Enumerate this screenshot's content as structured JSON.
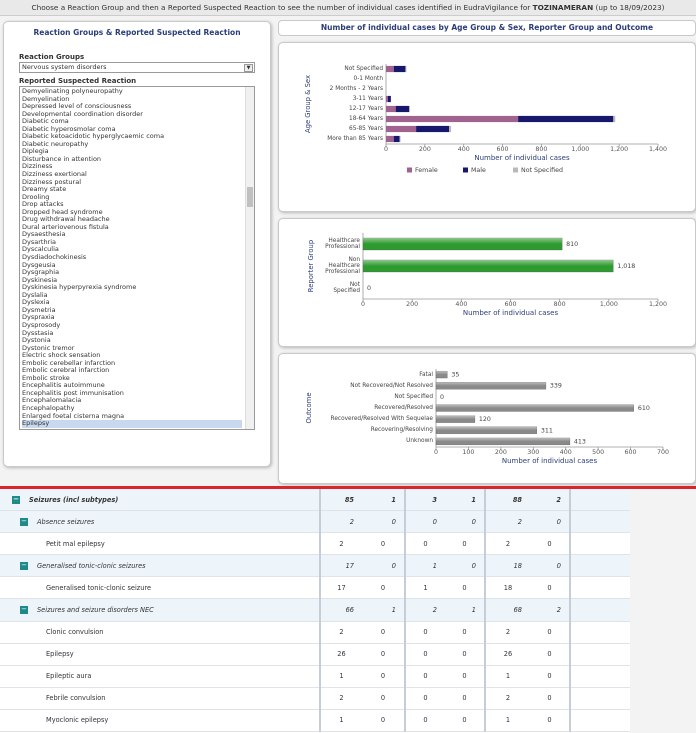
{
  "header": {
    "instruction": "Choose a Reaction Group and then a Reported Suspected Reaction to see the number of individual cases identified in EudraVigilance for",
    "product": "TOZINAMERAN",
    "suffix": "(up to 18/09/2023)"
  },
  "left_panel": {
    "title": "Reaction Groups & Reported Suspected Reaction",
    "group_label": "Reaction Groups",
    "group_selected": "Nervous system disorders",
    "reaction_label": "Reported Suspected Reaction",
    "reactions": [
      "Demyelinating polyneuropathy",
      "Demyelination",
      "Depressed level of consciousness",
      "Developmental coordination disorder",
      "Diabetic coma",
      "Diabetic hyperosmolar coma",
      "Diabetic ketoacidotic hyperglycaemic coma",
      "Diabetic neuropathy",
      "Diplegia",
      "Disturbance in attention",
      "Dizziness",
      "Dizziness exertional",
      "Dizziness postural",
      "Dreamy state",
      "Drooling",
      "Drop attacks",
      "Dropped head syndrome",
      "Drug withdrawal headache",
      "Dural arteriovenous fistula",
      "Dysaesthesia",
      "Dysarthria",
      "Dyscalculia",
      "Dysdiadochokinesis",
      "Dysgeusia",
      "Dysgraphia",
      "Dyskinesia",
      "Dyskinesia hyperpyrexia syndrome",
      "Dyslalia",
      "Dyslexia",
      "Dysmetria",
      "Dyspraxia",
      "Dysprosody",
      "Dysstasia",
      "Dystonia",
      "Dystonic tremor",
      "Electric shock sensation",
      "Embolic cerebellar infarction",
      "Embolic cerebral infarction",
      "Embolic stroke",
      "Encephalitis autoimmune",
      "Encephalitis post immunisation",
      "Encephalomalacia",
      "Encephalopathy",
      "Enlarged foetal cisterna magna",
      "Epilepsy"
    ]
  },
  "charts_title": "Number of individual cases by Age Group & Sex, Reporter Group and Outcome",
  "chart_data": [
    {
      "type": "bar",
      "orientation": "horizontal",
      "stacked": true,
      "x_label": "Number of individual cases",
      "y_label": "Age Group & Sex",
      "categories": [
        "Not Specified",
        "0-1 Month",
        "2 Months - 2 Years",
        "3-11 Years",
        "12-17 Years",
        "18-64 Years",
        "65-85 Years",
        "More than 85 Years"
      ],
      "series": [
        {
          "name": "Female",
          "color": "#a0628f",
          "values": [
            40,
            0,
            0,
            10,
            50,
            680,
            155,
            40
          ]
        },
        {
          "name": "Male",
          "color": "#17176b",
          "values": [
            60,
            0,
            0,
            15,
            70,
            490,
            170,
            30
          ]
        },
        {
          "name": "Not Specified",
          "color": "#b9b9b9",
          "values": [
            5,
            0,
            0,
            0,
            0,
            10,
            10,
            5
          ]
        }
      ],
      "xlim": [
        0,
        1400
      ],
      "xticks": [
        0,
        200,
        400,
        600,
        800,
        {
          "value": 1000,
          "label": "1,000"
        },
        {
          "value": 1200,
          "label": "1,200"
        },
        {
          "value": 1400,
          "label": "1,400"
        }
      ],
      "grid": false,
      "legend": "bottom"
    },
    {
      "type": "bar",
      "orientation": "horizontal",
      "x_label": "Number of individual cases",
      "y_label": "Reporter Group",
      "categories": [
        "Healthcare Professional",
        "Non Healthcare Professional",
        "Not Specified"
      ],
      "values": [
        810,
        1018,
        0
      ],
      "value_labels": [
        "810",
        "1,018",
        "0"
      ],
      "color": "#2f9a2f",
      "xlim": [
        0,
        1200
      ],
      "xticks": [
        0,
        200,
        400,
        600,
        800,
        {
          "value": 1000,
          "label": "1,000"
        },
        {
          "value": 1200,
          "label": "1,200"
        }
      ],
      "grid": false
    },
    {
      "type": "bar",
      "orientation": "horizontal",
      "x_label": "Number of individual cases",
      "y_label": "Outcome",
      "categories": [
        "Fatal",
        "Not Recovered/Not Resolved",
        "Not Specified",
        "Recovered/Resolved",
        "Recovered/Resolved With Sequelae",
        "Recovering/Resolving",
        "Unknown"
      ],
      "values": [
        35,
        339,
        0,
        610,
        120,
        311,
        413
      ],
      "color": "#8a8a8a",
      "xlim": [
        0,
        700
      ],
      "xticks": [
        0,
        100,
        200,
        300,
        400,
        500,
        600,
        700
      ],
      "grid": false
    }
  ],
  "table": {
    "rows": [
      {
        "label": "Seizures (incl subtypes)",
        "level": 1,
        "values": [
          "85",
          "1",
          "3",
          "1",
          "88",
          "2"
        ]
      },
      {
        "label": "Absence seizures",
        "level": 2,
        "values": [
          "2",
          "0",
          "0",
          "0",
          "2",
          "0"
        ]
      },
      {
        "label": "Petit mal epilepsy",
        "level": 3,
        "values": [
          "2",
          "0",
          "0",
          "0",
          "2",
          "0"
        ]
      },
      {
        "label": "Generalised tonic-clonic seizures",
        "level": 2,
        "values": [
          "17",
          "0",
          "1",
          "0",
          "18",
          "0"
        ]
      },
      {
        "label": "Generalised tonic-clonic seizure",
        "level": 3,
        "values": [
          "17",
          "0",
          "1",
          "0",
          "18",
          "0"
        ]
      },
      {
        "label": "Seizures and seizure disorders NEC",
        "level": 2,
        "values": [
          "66",
          "1",
          "2",
          "1",
          "68",
          "2"
        ]
      },
      {
        "label": "Clonic convulsion",
        "level": 3,
        "values": [
          "2",
          "0",
          "0",
          "0",
          "2",
          "0"
        ]
      },
      {
        "label": "Epilepsy",
        "level": 3,
        "values": [
          "26",
          "0",
          "0",
          "0",
          "26",
          "0"
        ]
      },
      {
        "label": "Epileptic aura",
        "level": 3,
        "values": [
          "1",
          "0",
          "0",
          "0",
          "1",
          "0"
        ]
      },
      {
        "label": "Febrile convulsion",
        "level": 3,
        "values": [
          "2",
          "0",
          "0",
          "0",
          "2",
          "0"
        ]
      },
      {
        "label": "Myoclonic epilepsy",
        "level": 3,
        "values": [
          "1",
          "0",
          "0",
          "0",
          "1",
          "0"
        ]
      }
    ]
  }
}
